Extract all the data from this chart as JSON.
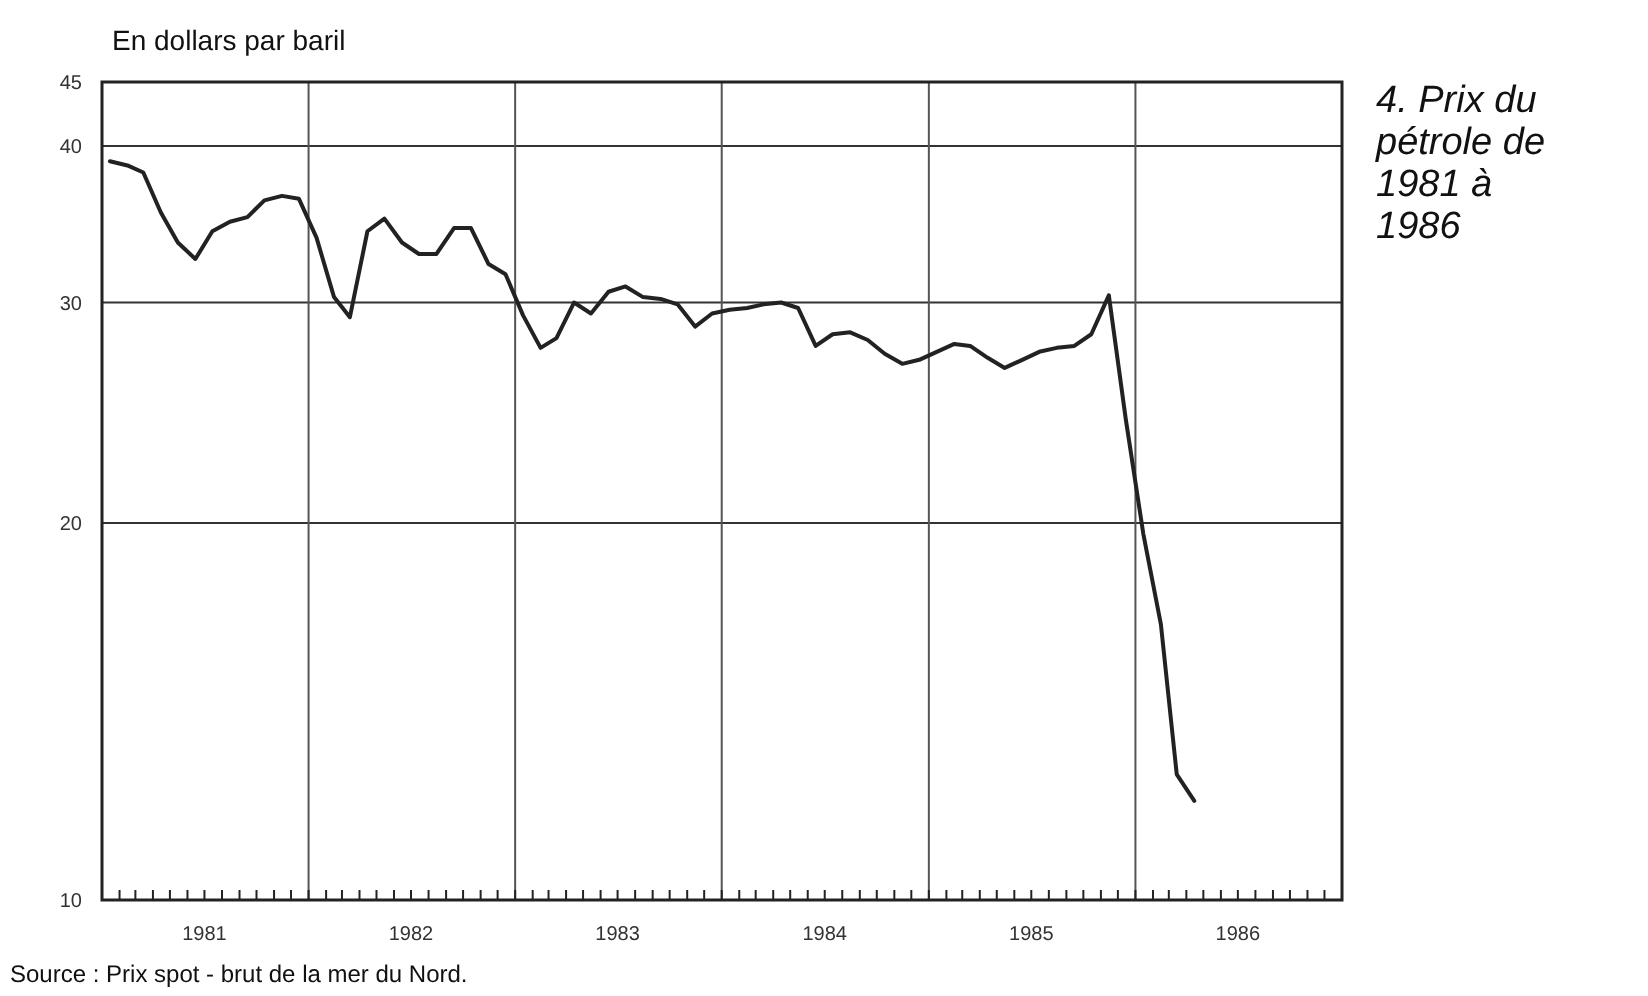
{
  "chart_data": {
    "type": "line",
    "title": "4. Prix du pétrole de 1981 à 1986",
    "ylabel": "En dollars par baril",
    "annotations": [
      "Source : Prix spot - brut de la mer du Nord."
    ],
    "log": true,
    "grid": true,
    "marker": "none",
    "line_style": "solid",
    "ylim": [
      10,
      45
    ],
    "yticks": [
      10,
      20,
      30,
      40,
      45
    ],
    "xlim": [
      "1981-01-01",
      "1987-01-01"
    ],
    "xticks": [
      {
        "value": "1981-02-01",
        "label": null
      },
      {
        "value": "1981-03-01",
        "label": null
      },
      {
        "value": "1981-04-01",
        "label": null
      },
      {
        "value": "1981-05-01",
        "label": null
      },
      {
        "value": "1981-06-01",
        "label": null
      },
      {
        "value": "1981-07-01",
        "label": "1981"
      },
      {
        "value": "1981-08-01",
        "label": null
      },
      {
        "value": "1981-09-01",
        "label": null
      },
      {
        "value": "1981-10-01",
        "label": null
      },
      {
        "value": "1981-11-01",
        "label": null
      },
      {
        "value": "1981-12-01",
        "label": null
      },
      {
        "value": "1982-01-01",
        "label": null
      },
      {
        "value": "1982-02-01",
        "label": null
      },
      {
        "value": "1982-03-01",
        "label": null
      },
      {
        "value": "1982-04-01",
        "label": null
      },
      {
        "value": "1982-05-01",
        "label": null
      },
      {
        "value": "1982-06-01",
        "label": null
      },
      {
        "value": "1982-07-01",
        "label": "1982"
      },
      {
        "value": "1982-08-01",
        "label": null
      },
      {
        "value": "1982-09-01",
        "label": null
      },
      {
        "value": "1982-10-01",
        "label": null
      },
      {
        "value": "1982-11-01",
        "label": null
      },
      {
        "value": "1982-12-01",
        "label": null
      },
      {
        "value": "1983-01-01",
        "label": null
      },
      {
        "value": "1983-02-01",
        "label": null
      },
      {
        "value": "1983-03-01",
        "label": null
      },
      {
        "value": "1983-04-01",
        "label": null
      },
      {
        "value": "1983-05-01",
        "label": null
      },
      {
        "value": "1983-06-01",
        "label": null
      },
      {
        "value": "1983-07-01",
        "label": "1983"
      },
      {
        "value": "1983-08-01",
        "label": null
      },
      {
        "value": "1983-09-01",
        "label": null
      },
      {
        "value": "1983-10-01",
        "label": null
      },
      {
        "value": "1983-11-01",
        "label": null
      },
      {
        "value": "1983-12-01",
        "label": null
      },
      {
        "value": "1984-01-01",
        "label": null
      },
      {
        "value": "1984-02-01",
        "label": null
      },
      {
        "value": "1984-03-01",
        "label": null
      },
      {
        "value": "1984-04-01",
        "label": null
      },
      {
        "value": "1984-05-01",
        "label": null
      },
      {
        "value": "1984-06-01",
        "label": null
      },
      {
        "value": "1984-07-01",
        "label": "1984"
      },
      {
        "value": "1984-08-01",
        "label": null
      },
      {
        "value": "1984-09-01",
        "label": null
      },
      {
        "value": "1984-10-01",
        "label": null
      },
      {
        "value": "1984-11-01",
        "label": null
      },
      {
        "value": "1984-12-01",
        "label": null
      },
      {
        "value": "1985-01-01",
        "label": null
      },
      {
        "value": "1985-02-01",
        "label": null
      },
      {
        "value": "1985-03-01",
        "label": null
      },
      {
        "value": "1985-04-01",
        "label": null
      },
      {
        "value": "1985-05-01",
        "label": null
      },
      {
        "value": "1985-06-01",
        "label": null
      },
      {
        "value": "1985-07-01",
        "label": "1985"
      },
      {
        "value": "1985-08-01",
        "label": null
      },
      {
        "value": "1985-09-01",
        "label": null
      },
      {
        "value": "1985-10-01",
        "label": null
      },
      {
        "value": "1985-11-01",
        "label": null
      },
      {
        "value": "1985-12-01",
        "label": null
      },
      {
        "value": "1986-01-01",
        "label": null
      },
      {
        "value": "1986-02-01",
        "label": null
      },
      {
        "value": "1986-03-01",
        "label": null
      },
      {
        "value": "1986-04-01",
        "label": null
      },
      {
        "value": "1986-05-01",
        "label": null
      },
      {
        "value": "1986-06-01",
        "label": null
      },
      {
        "value": "1986-07-01",
        "label": "1986"
      },
      {
        "value": "1986-08-01",
        "label": null
      },
      {
        "value": "1986-09-01",
        "label": null
      },
      {
        "value": "1986-10-01",
        "label": null
      },
      {
        "value": "1986-11-01",
        "label": null
      },
      {
        "value": "1986-12-01",
        "label": null
      }
    ],
    "x": [
      "1981-01-15",
      "1981-02-15",
      "1981-03-15",
      "1981-04-15",
      "1981-05-15",
      "1981-06-15",
      "1981-07-15",
      "1981-08-15",
      "1981-09-15",
      "1981-10-15",
      "1981-11-15",
      "1981-12-15",
      "1982-01-15",
      "1982-02-15",
      "1982-03-15",
      "1982-04-15",
      "1982-05-15",
      "1982-06-15",
      "1982-07-15",
      "1982-08-15",
      "1982-09-15",
      "1982-10-15",
      "1982-11-15",
      "1982-12-15",
      "1983-01-15",
      "1983-02-15",
      "1983-03-15",
      "1983-04-15",
      "1983-05-15",
      "1983-06-15",
      "1983-07-15",
      "1983-08-15",
      "1983-09-15",
      "1983-10-15",
      "1983-11-15",
      "1983-12-15",
      "1984-01-15",
      "1984-02-15",
      "1984-03-15",
      "1984-04-15",
      "1984-05-15",
      "1984-06-15",
      "1984-07-15",
      "1984-08-15",
      "1984-09-15",
      "1984-10-15",
      "1984-11-15",
      "1984-12-15",
      "1985-01-15",
      "1985-02-15",
      "1985-03-15",
      "1985-04-15",
      "1985-05-15",
      "1985-06-15",
      "1985-07-15",
      "1985-08-15",
      "1985-09-15",
      "1985-10-15",
      "1985-11-15",
      "1985-12-15",
      "1986-01-15",
      "1986-02-15",
      "1986-03-15",
      "1986-04-15"
    ],
    "series": [
      {
        "color": "#222222",
        "values": [
          38.9,
          38.6,
          38.1,
          35.4,
          33.5,
          32.5,
          34.2,
          34.8,
          35.1,
          36.2,
          36.5,
          36.3,
          33.8,
          30.3,
          29.2,
          34.2,
          35.0,
          33.5,
          32.8,
          32.8,
          34.4,
          34.4,
          32.2,
          31.6,
          29.3,
          27.6,
          28.1,
          30.0,
          29.4,
          30.6,
          30.9,
          30.3,
          30.2,
          29.9,
          28.7,
          29.4,
          29.6,
          29.7,
          29.9,
          30.0,
          29.7,
          27.7,
          28.3,
          28.4,
          28.0,
          27.3,
          26.8,
          27.0,
          27.4,
          27.8,
          27.7,
          27.1,
          26.6,
          27.0,
          27.4,
          27.6,
          27.7,
          28.3,
          30.4,
          24.2,
          19.6,
          16.6,
          12.6,
          12.0
        ]
      }
    ]
  }
}
